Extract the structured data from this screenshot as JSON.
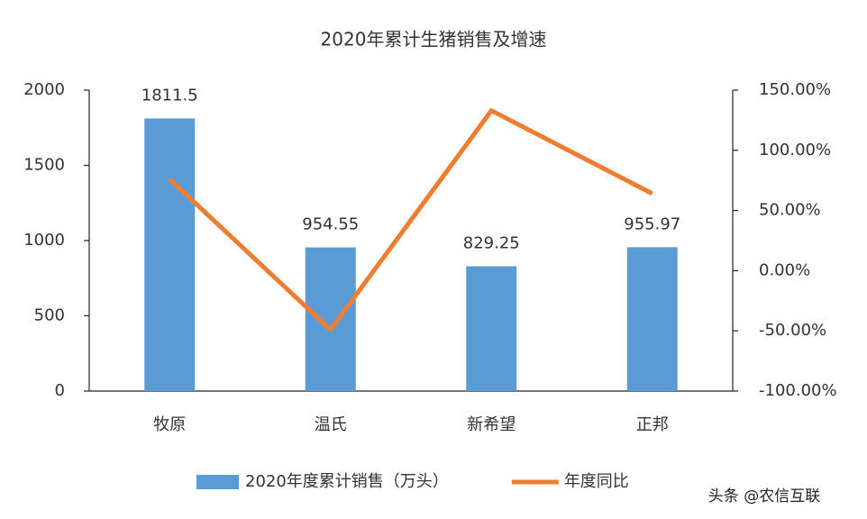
{
  "chart_data": {
    "type": "bar",
    "title": "2020年累计生猪销售及增速",
    "categories": [
      "牧原",
      "温氏",
      "新希望",
      "正邦"
    ],
    "series": [
      {
        "name": "2020年度累计销售（万头）",
        "type": "bar",
        "color": "#5b9bd5",
        "values": [
          1811.5,
          954.55,
          829.25,
          955.97
        ]
      },
      {
        "name": "年度同比",
        "type": "line",
        "axis": "y2",
        "color": "#ed7d31",
        "values": [
          76,
          -49,
          133,
          64
        ]
      }
    ],
    "ylim": [
      0,
      2000
    ],
    "yticks": [
      0,
      500,
      1000,
      1500,
      2000
    ],
    "y2lim": [
      -100,
      150
    ],
    "y2ticks": [
      {
        "value": -100,
        "label": "-100.00%"
      },
      {
        "value": -50,
        "label": "-50.00%"
      },
      {
        "value": 0,
        "label": "0.00%"
      },
      {
        "value": 50,
        "label": "50.00%"
      },
      {
        "value": 100,
        "label": "100.00%"
      },
      {
        "value": 150,
        "label": "150.00%"
      }
    ],
    "grid": false,
    "legend": "bottom"
  },
  "watermark": "头条 @农信互联"
}
